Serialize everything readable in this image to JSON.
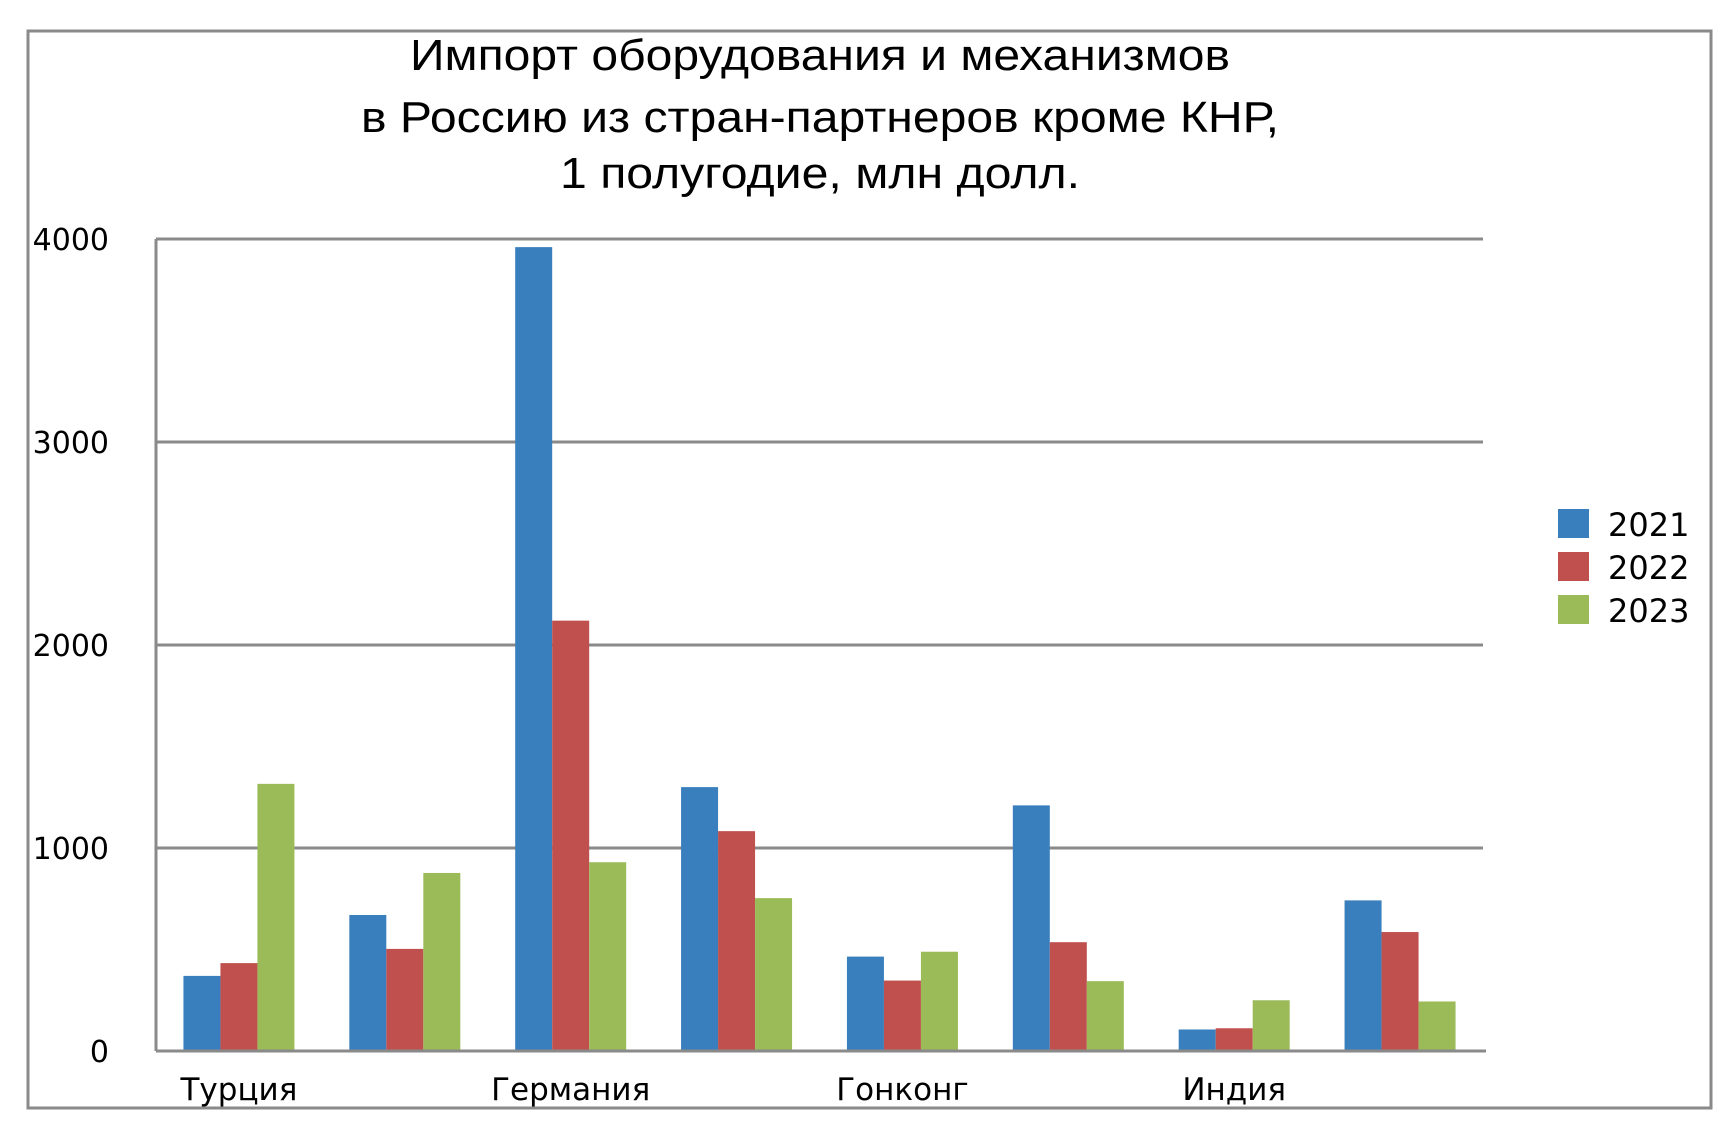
{
  "chart_data": {
    "type": "bar",
    "title": [
      "Импорт оборудования и механизмов",
      "в Россию из стран-партнеров кроме КНР,",
      "1 полугодие, млн долл."
    ],
    "xlabel": "",
    "ylabel": "",
    "categories": [
      "Турция",
      "",
      "Германия",
      "",
      "Гонконг",
      "",
      "Индия",
      ""
    ],
    "ylim": [
      0,
      4000
    ],
    "yticks": [
      "0",
      "1000",
      "2000",
      "3000",
      "4000"
    ],
    "grid": true,
    "legend_position": "right",
    "series": [
      {
        "name": "2021",
        "color": "#3a7fbd",
        "values": [
          370,
          670,
          3960,
          1300,
          465,
          1210,
          106,
          742
        ]
      },
      {
        "name": "2022",
        "color": "#c0504d",
        "values": [
          433,
          503,
          2120,
          1083,
          347,
          536,
          112,
          586
        ]
      },
      {
        "name": "2023",
        "color": "#9bbb59",
        "values": [
          1316,
          877,
          930,
          753,
          489,
          344,
          250,
          244
        ]
      }
    ]
  }
}
